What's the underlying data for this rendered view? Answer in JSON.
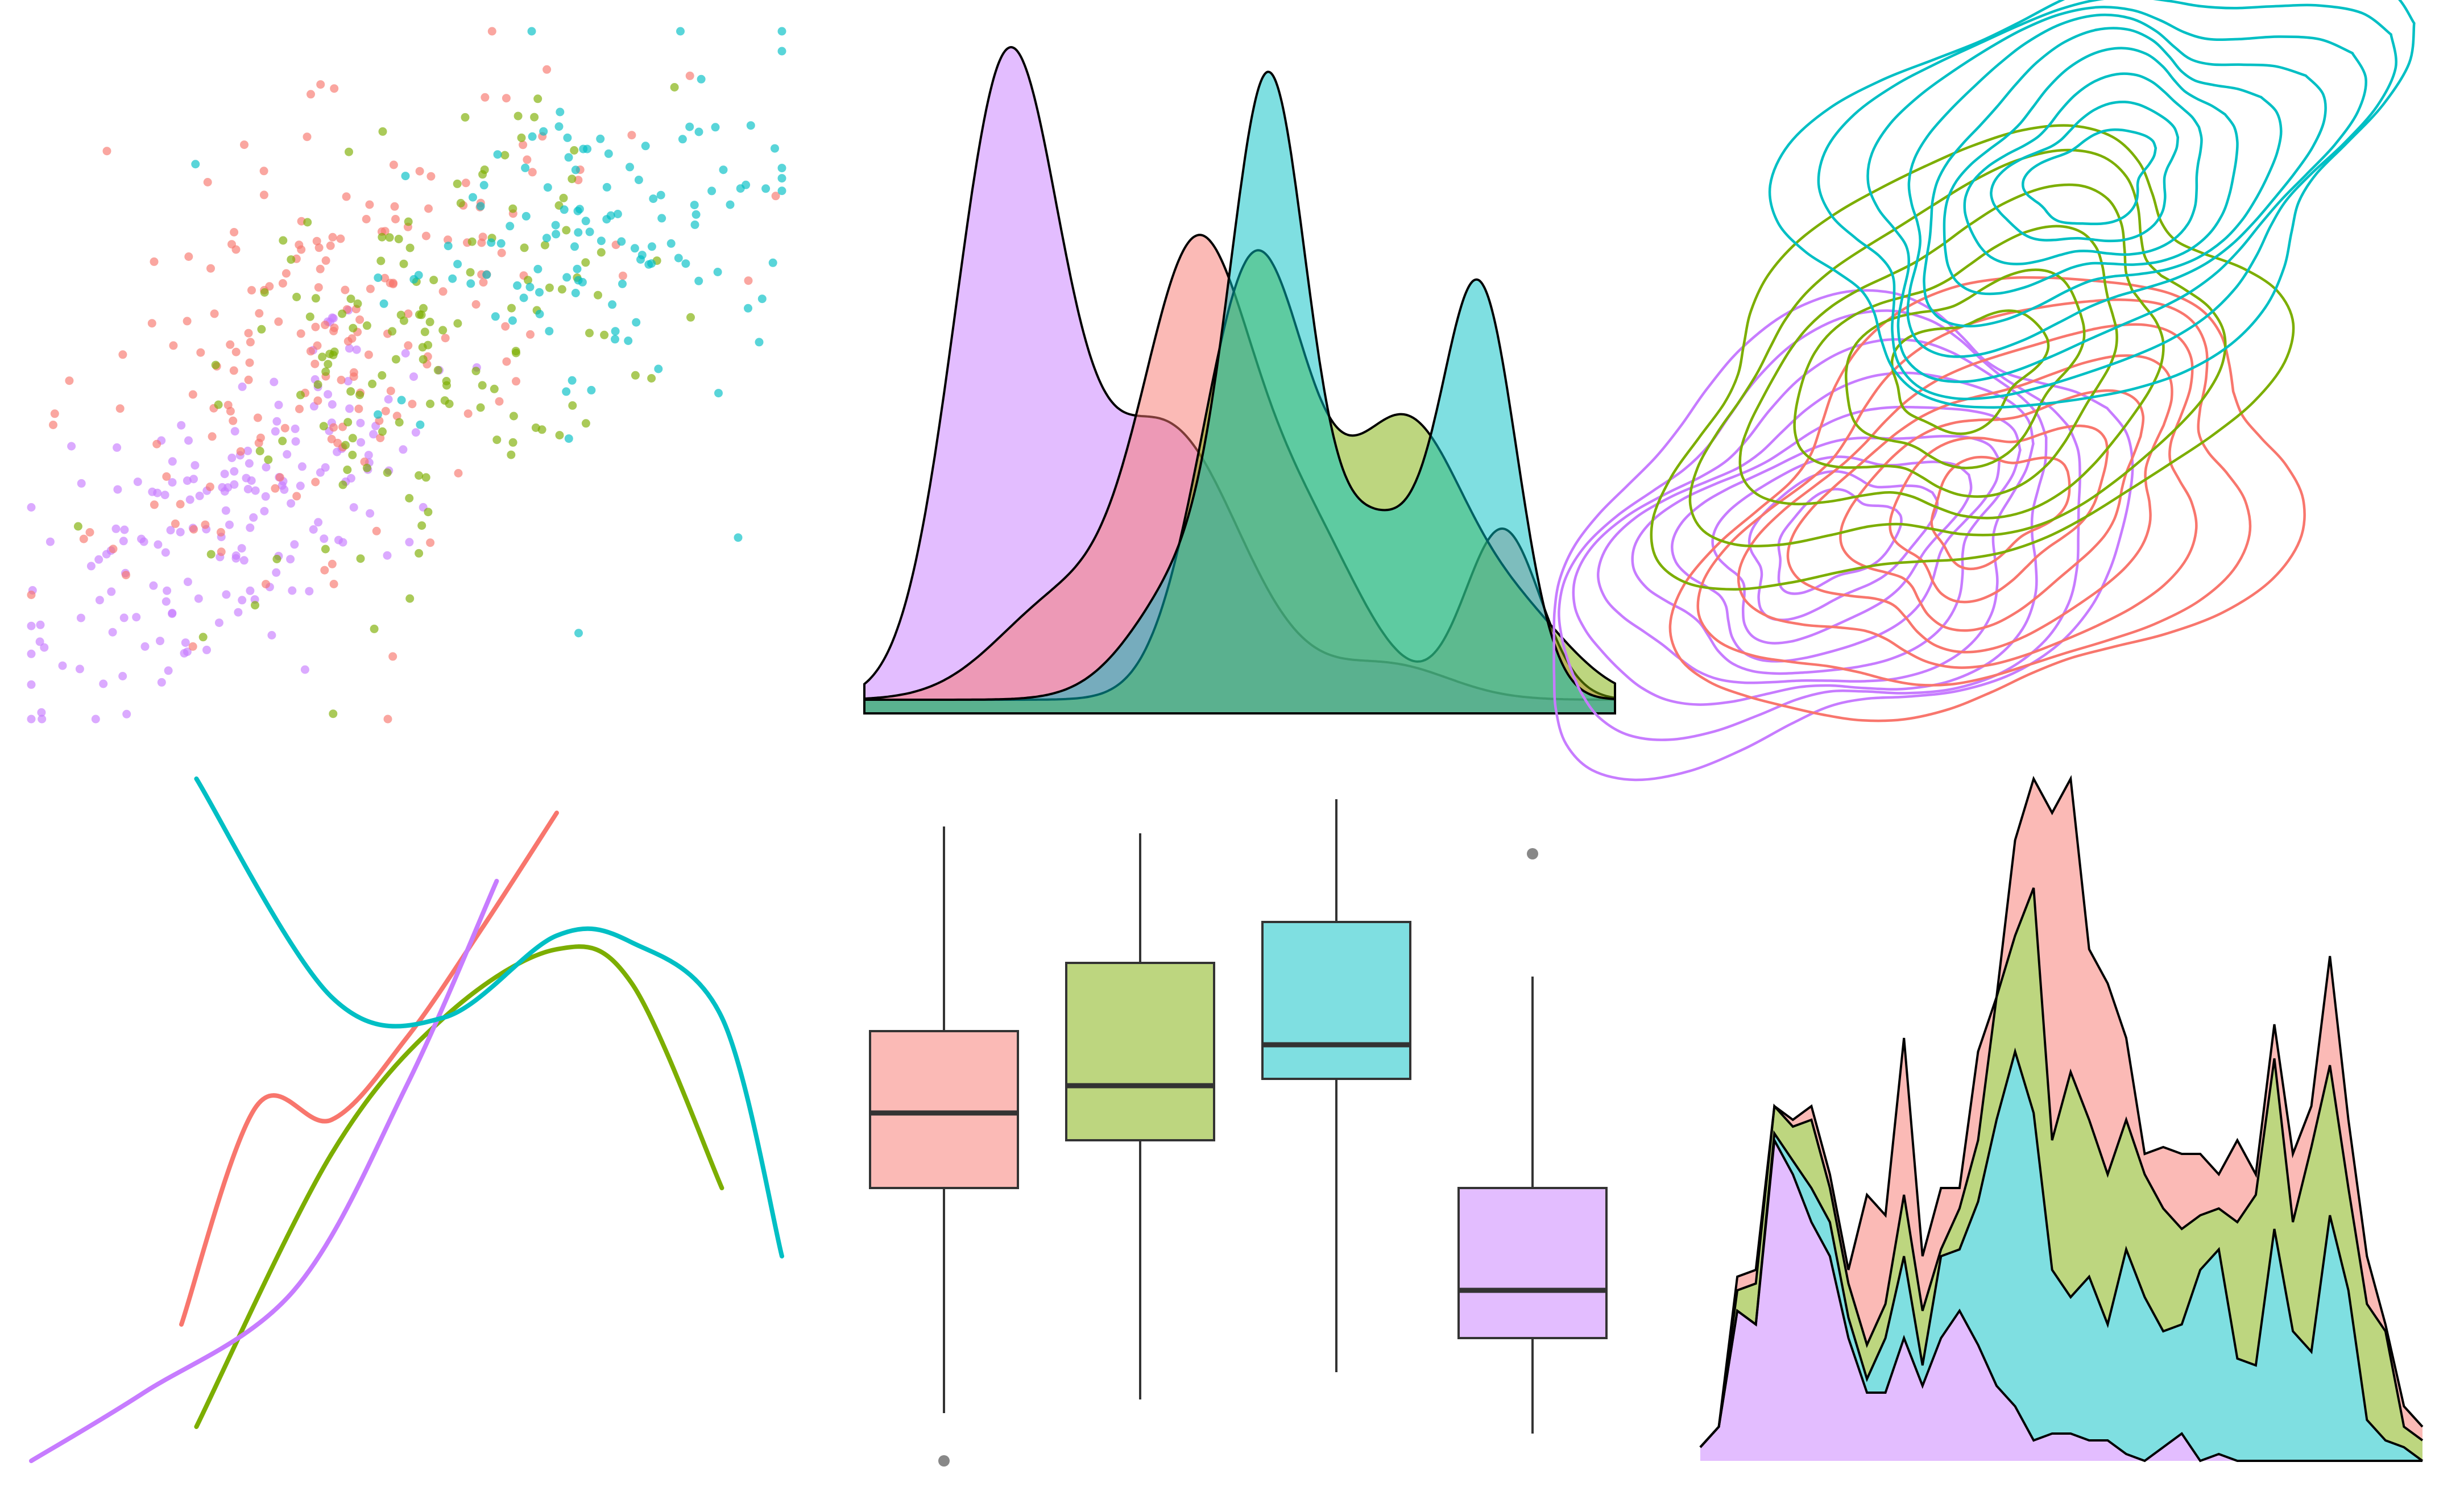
{
  "palette": {
    "red": "#F8766D",
    "green": "#7CAE00",
    "cyan": "#00BFC4",
    "purple": "#C77CFF",
    "outline": "#000000",
    "median": "#333333",
    "outlier": "#888888"
  },
  "chart_data": [
    {
      "type": "scatter",
      "grid": false,
      "xlim": [
        0,
        480
      ],
      "ylim": [
        0,
        440
      ],
      "series": [
        {
          "color_key": "purple",
          "n": 180,
          "cx": 130,
          "cy": 130,
          "spread_along": 85,
          "spread_across": 40
        },
        {
          "color_key": "red",
          "n": 190,
          "cx": 195,
          "cy": 250,
          "spread_along": 100,
          "spread_across": 55
        },
        {
          "color_key": "green",
          "n": 140,
          "cx": 265,
          "cy": 240,
          "spread_along": 90,
          "spread_across": 55
        },
        {
          "color_key": "cyan",
          "n": 120,
          "cx": 360,
          "cy": 300,
          "spread_along": 75,
          "spread_across": 50
        }
      ],
      "outliers": [
        {
          "color_key": "cyan",
          "x": 105,
          "y": 355
        },
        {
          "color_key": "cyan",
          "x": 350,
          "y": 55
        },
        {
          "color_key": "red",
          "x": 228,
          "y": 0
        },
        {
          "color_key": "cyan",
          "x": 320,
          "y": 440
        }
      ]
    },
    {
      "type": "area",
      "subtype": "density",
      "grid": false,
      "xlim": [
        0,
        1
      ],
      "ylim": [
        0,
        1
      ],
      "series": [
        {
          "color_key": "purple",
          "peaks": [
            {
              "mu": 0.19,
              "sd": 0.07,
              "h": 0.91
            },
            {
              "mu": 0.4,
              "sd": 0.1,
              "h": 0.4
            },
            {
              "mu": 0.7,
              "sd": 0.08,
              "h": 0.05
            }
          ]
        },
        {
          "color_key": "red",
          "peaks": [
            {
              "mu": 0.44,
              "sd": 0.07,
              "h": 0.6
            },
            {
              "mu": 0.27,
              "sd": 0.09,
              "h": 0.15
            },
            {
              "mu": 0.58,
              "sd": 0.08,
              "h": 0.25
            },
            {
              "mu": 0.85,
              "sd": 0.05,
              "h": 0.25
            }
          ]
        },
        {
          "color_key": "green",
          "peaks": [
            {
              "mu": 0.52,
              "sd": 0.07,
              "h": 0.64
            },
            {
              "mu": 0.72,
              "sd": 0.08,
              "h": 0.4
            },
            {
              "mu": 0.88,
              "sd": 0.07,
              "h": 0.1
            }
          ]
        },
        {
          "color_key": "cyan",
          "peaks": [
            {
              "mu": 0.54,
              "sd": 0.05,
              "h": 0.78
            },
            {
              "mu": 0.82,
              "sd": 0.05,
              "h": 0.58
            },
            {
              "mu": 0.45,
              "sd": 0.08,
              "h": 0.2
            },
            {
              "mu": 0.68,
              "sd": 0.07,
              "h": 0.25
            }
          ]
        }
      ]
    },
    {
      "type": "contour",
      "grid": false,
      "xlim": [
        0,
        1
      ],
      "ylim": [
        0,
        1
      ],
      "series": [
        {
          "color_key": "purple",
          "cx": 0.2,
          "cy": 0.25,
          "levels": 9
        },
        {
          "color_key": "red",
          "cx": 0.42,
          "cy": 0.3,
          "levels": 7
        },
        {
          "color_key": "green",
          "cx": 0.38,
          "cy": 0.5,
          "levels": 6
        },
        {
          "color_key": "cyan",
          "cx": 0.55,
          "cy": 0.78,
          "levels": 9
        }
      ]
    },
    {
      "type": "line",
      "subtype": "smooth",
      "grid": false,
      "xlim": [
        0,
        1
      ],
      "ylim": [
        0,
        1
      ],
      "series": [
        {
          "color_key": "red",
          "x": [
            0.2,
            0.3,
            0.4,
            0.5,
            0.6,
            0.7
          ],
          "y": [
            0.2,
            0.52,
            0.5,
            0.62,
            0.78,
            0.95
          ]
        },
        {
          "color_key": "green",
          "x": [
            0.22,
            0.4,
            0.55,
            0.7,
            0.8,
            0.92
          ],
          "y": [
            0.05,
            0.45,
            0.65,
            0.75,
            0.7,
            0.4
          ]
        },
        {
          "color_key": "purple",
          "x": [
            0.0,
            0.15,
            0.35,
            0.5,
            0.62
          ],
          "y": [
            0.0,
            0.1,
            0.25,
            0.55,
            0.85
          ]
        },
        {
          "color_key": "cyan",
          "x": [
            0.22,
            0.4,
            0.55,
            0.7,
            0.8,
            0.92,
            1.0
          ],
          "y": [
            1.0,
            0.68,
            0.65,
            0.77,
            0.76,
            0.65,
            0.3
          ]
        }
      ]
    },
    {
      "type": "box",
      "grid": false,
      "ylim": [
        0,
        1
      ],
      "boxes": [
        {
          "color_key": "red",
          "whisker_low": 0.07,
          "q1": 0.4,
          "median": 0.51,
          "q3": 0.63,
          "whisker_high": 0.93,
          "outliers": [
            0.0
          ]
        },
        {
          "color_key": "green",
          "whisker_low": 0.09,
          "q1": 0.47,
          "median": 0.55,
          "q3": 0.73,
          "whisker_high": 0.92,
          "outliers": []
        },
        {
          "color_key": "cyan",
          "whisker_low": 0.13,
          "q1": 0.56,
          "median": 0.61,
          "q3": 0.79,
          "whisker_high": 0.97,
          "outliers": []
        },
        {
          "color_key": "purple",
          "whisker_low": 0.04,
          "q1": 0.18,
          "median": 0.25,
          "q3": 0.4,
          "whisker_high": 0.71,
          "outliers": [
            0.89
          ]
        }
      ]
    },
    {
      "type": "area",
      "subtype": "stacked",
      "grid": false,
      "xlim": [
        0,
        39
      ],
      "ylim": [
        0,
        1
      ],
      "stack_order": [
        "purple",
        "cyan",
        "green",
        "red"
      ],
      "x": [
        0,
        1,
        2,
        3,
        4,
        5,
        6,
        7,
        8,
        9,
        10,
        11,
        12,
        13,
        14,
        15,
        16,
        17,
        18,
        19,
        20,
        21,
        22,
        23,
        24,
        25,
        26,
        27,
        28,
        29,
        30,
        31,
        32,
        33,
        34,
        35,
        36,
        37,
        38,
        39
      ],
      "totals": [
        0.02,
        0.05,
        0.27,
        0.28,
        0.52,
        0.5,
        0.52,
        0.42,
        0.28,
        0.39,
        0.36,
        0.62,
        0.3,
        0.4,
        0.4,
        0.6,
        0.68,
        0.91,
        1.0,
        0.95,
        1.0,
        0.75,
        0.7,
        0.62,
        0.45,
        0.46,
        0.45,
        0.45,
        0.42,
        0.47,
        0.42,
        0.64,
        0.45,
        0.52,
        0.74,
        0.5,
        0.3,
        0.2,
        0.08,
        0.05
      ],
      "series": [
        {
          "color_key": "purple",
          "values": [
            0.02,
            0.05,
            0.22,
            0.2,
            0.47,
            0.42,
            0.35,
            0.3,
            0.18,
            0.1,
            0.1,
            0.18,
            0.11,
            0.18,
            0.22,
            0.17,
            0.11,
            0.08,
            0.03,
            0.04,
            0.04,
            0.03,
            0.03,
            0.01,
            0.0,
            0.02,
            0.04,
            0.0,
            0.01,
            0.0,
            0.0,
            0.0,
            0.0,
            0.0,
            0.0,
            0.0,
            0.0,
            0.0,
            0.0,
            0.0
          ]
        },
        {
          "color_key": "cyan",
          "values": [
            0.0,
            0.0,
            0.0,
            0.0,
            0.01,
            0.02,
            0.05,
            0.05,
            0.03,
            0.02,
            0.08,
            0.12,
            0.03,
            0.12,
            0.09,
            0.21,
            0.39,
            0.52,
            0.48,
            0.24,
            0.2,
            0.24,
            0.17,
            0.3,
            0.24,
            0.17,
            0.16,
            0.28,
            0.3,
            0.15,
            0.14,
            0.34,
            0.19,
            0.16,
            0.36,
            0.25,
            0.06,
            0.03,
            0.02,
            0.0
          ]
        },
        {
          "color_key": "green",
          "values": [
            0.0,
            0.0,
            0.03,
            0.06,
            0.04,
            0.05,
            0.1,
            0.05,
            0.05,
            0.05,
            0.05,
            0.09,
            0.08,
            0.01,
            0.06,
            0.09,
            0.18,
            0.17,
            0.33,
            0.19,
            0.33,
            0.23,
            0.22,
            0.19,
            0.18,
            0.18,
            0.14,
            0.08,
            0.06,
            0.2,
            0.25,
            0.25,
            0.16,
            0.3,
            0.22,
            0.15,
            0.17,
            0.16,
            0.03,
            0.03
          ]
        },
        {
          "color_key": "red",
          "values": [
            0.0,
            0.0,
            0.02,
            0.02,
            0.0,
            0.01,
            0.02,
            0.02,
            0.02,
            0.22,
            0.13,
            0.23,
            0.08,
            0.09,
            0.03,
            0.13,
            0.0,
            0.14,
            0.16,
            0.48,
            0.43,
            0.25,
            0.28,
            0.12,
            0.03,
            0.09,
            0.11,
            0.09,
            0.05,
            0.12,
            0.03,
            0.05,
            0.1,
            0.06,
            0.16,
            0.1,
            0.07,
            0.01,
            0.03,
            0.02
          ]
        }
      ]
    }
  ]
}
